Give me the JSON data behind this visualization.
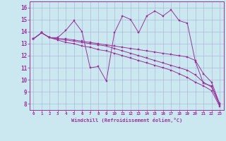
{
  "xlabel": "Windchill (Refroidissement éolien,°C)",
  "bg_color": "#cbe8f0",
  "line_color": "#993399",
  "grid_color": "#9999cc",
  "xlim": [
    -0.5,
    23.5
  ],
  "ylim": [
    7.5,
    16.5
  ],
  "xticks": [
    0,
    1,
    2,
    3,
    4,
    5,
    6,
    7,
    8,
    9,
    10,
    11,
    12,
    13,
    14,
    15,
    16,
    17,
    18,
    19,
    20,
    21,
    22,
    23
  ],
  "yticks": [
    8,
    9,
    10,
    11,
    12,
    13,
    14,
    15,
    16
  ],
  "series": [
    {
      "x": [
        0,
        1,
        2,
        3,
        4,
        5,
        6,
        7,
        8,
        9,
        10,
        11,
        12,
        13,
        14,
        15,
        16,
        17,
        18,
        19,
        20,
        21,
        22,
        23
      ],
      "y": [
        13.4,
        13.9,
        13.5,
        13.5,
        14.1,
        14.9,
        14.0,
        11.0,
        11.1,
        9.9,
        13.9,
        15.3,
        15.0,
        13.9,
        15.3,
        15.7,
        15.3,
        15.8,
        14.9,
        14.7,
        11.5,
        9.7,
        9.5,
        8.0
      ]
    },
    {
      "x": [
        0,
        1,
        2,
        3,
        4,
        5,
        6,
        7,
        8,
        9,
        10,
        11,
        12,
        13,
        14,
        15,
        16,
        17,
        18,
        19,
        20,
        21,
        22,
        23
      ],
      "y": [
        13.4,
        13.9,
        13.5,
        13.4,
        13.4,
        13.3,
        13.2,
        13.1,
        13.0,
        12.9,
        12.8,
        12.7,
        12.6,
        12.5,
        12.4,
        12.3,
        12.2,
        12.1,
        12.0,
        11.9,
        11.6,
        10.5,
        9.8,
        8.0
      ]
    },
    {
      "x": [
        0,
        1,
        2,
        3,
        4,
        5,
        6,
        7,
        8,
        9,
        10,
        11,
        12,
        13,
        14,
        15,
        16,
        17,
        18,
        19,
        20,
        21,
        22,
        23
      ],
      "y": [
        13.4,
        13.9,
        13.5,
        13.4,
        13.3,
        13.2,
        13.1,
        13.0,
        12.9,
        12.8,
        12.6,
        12.4,
        12.2,
        12.0,
        11.8,
        11.6,
        11.4,
        11.2,
        11.0,
        10.8,
        10.4,
        9.8,
        9.4,
        7.9
      ]
    },
    {
      "x": [
        0,
        1,
        2,
        3,
        4,
        5,
        6,
        7,
        8,
        9,
        10,
        11,
        12,
        13,
        14,
        15,
        16,
        17,
        18,
        19,
        20,
        21,
        22,
        23
      ],
      "y": [
        13.4,
        13.9,
        13.5,
        13.3,
        13.1,
        13.0,
        12.8,
        12.7,
        12.5,
        12.4,
        12.2,
        12.0,
        11.8,
        11.6,
        11.4,
        11.2,
        11.0,
        10.8,
        10.5,
        10.2,
        9.8,
        9.5,
        9.1,
        7.8
      ]
    }
  ]
}
